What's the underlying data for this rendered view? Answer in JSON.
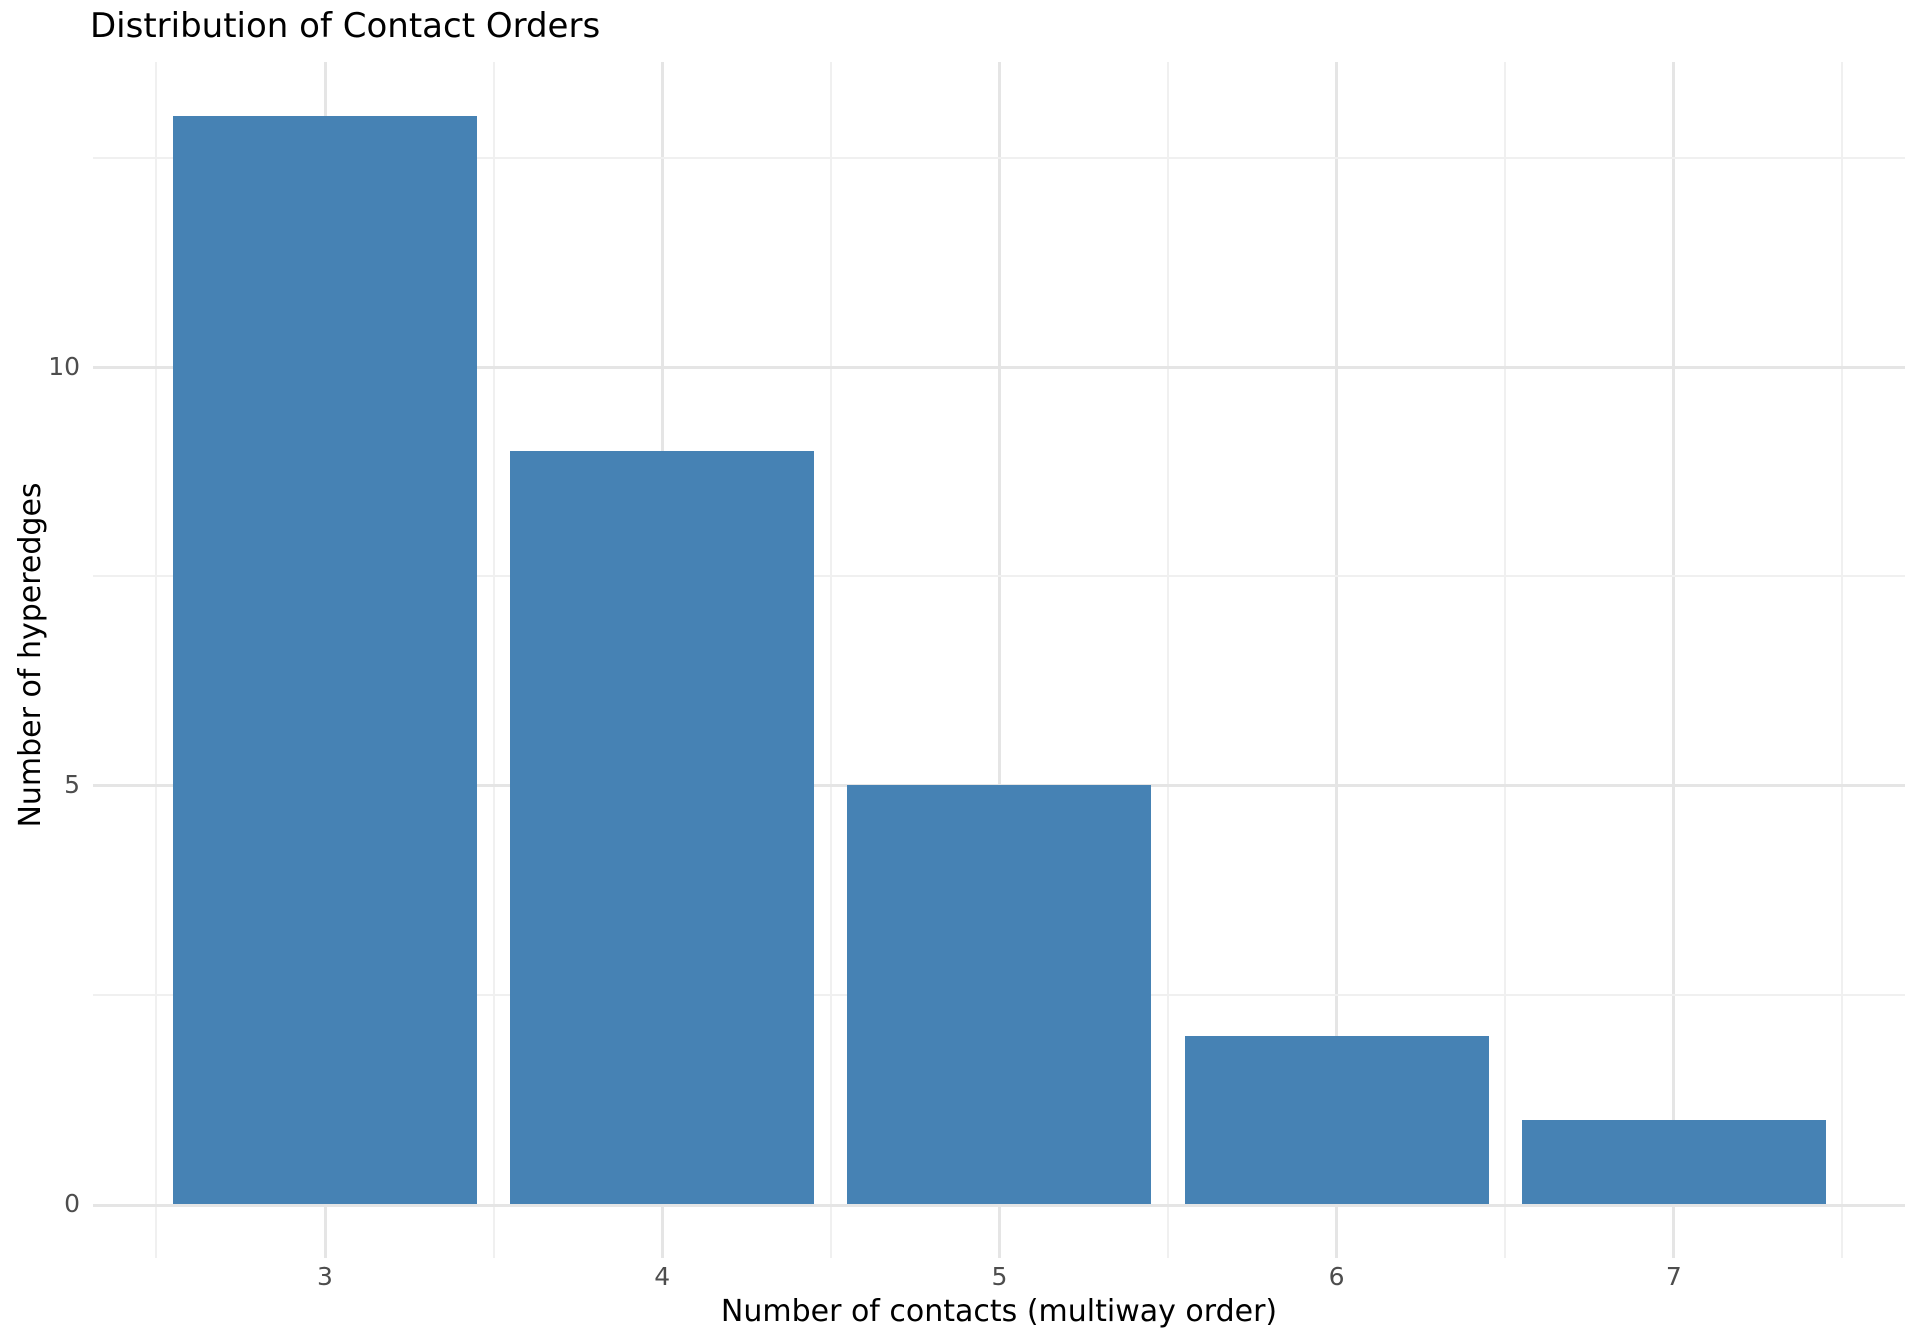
{
  "chart_data": {
    "type": "bar",
    "title": "Distribution of Contact Orders",
    "xlabel": "Number of contacts (multiway order)",
    "ylabel": "Number of hyperedges",
    "categories": [
      "3",
      "4",
      "5",
      "6",
      "7"
    ],
    "values": [
      13,
      9,
      5,
      2,
      1
    ],
    "y_ticks": [
      0,
      5,
      10
    ],
    "y_minor_ticks": [
      2.5,
      7.5,
      12.5
    ],
    "ylim": [
      -0.65,
      13.65
    ],
    "legend": "none",
    "grid": "on",
    "colors": {
      "bar_fill": "#4682b4",
      "grid_major": "#e5e5e5",
      "grid_minor": "#f0f0f0",
      "tick_label": "#4d4d4d",
      "axis_title": "#000000",
      "title": "#000000",
      "background": "#ffffff"
    }
  }
}
